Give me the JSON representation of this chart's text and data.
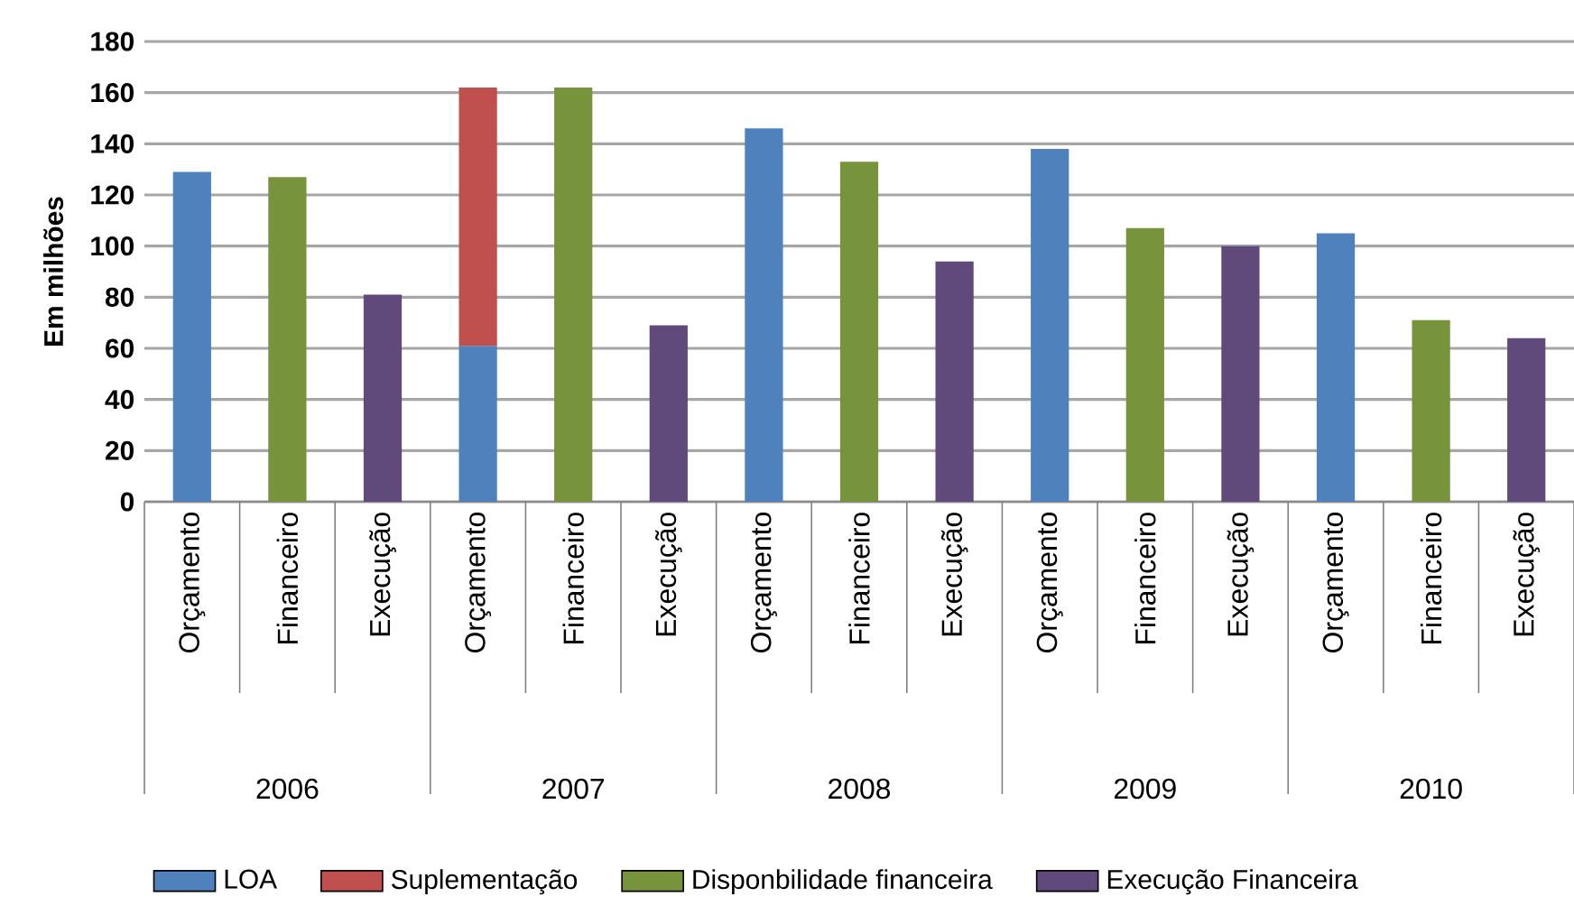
{
  "chart_data": {
    "type": "bar",
    "stacked": true,
    "ylabel": "Em milhões",
    "categories": [
      "Orçamento",
      "Financeiro",
      "Execução",
      "Orçamento",
      "Financeiro",
      "Execução",
      "Orçamento",
      "Financeiro",
      "Execução",
      "Orçamento",
      "Financeiro",
      "Execução",
      "Orçamento",
      "Financeiro",
      "Execução"
    ],
    "series": [
      {
        "name": "LOA",
        "color": "#4f81bd",
        "values": [
          129,
          null,
          null,
          61,
          null,
          null,
          146,
          null,
          null,
          138,
          null,
          null,
          105,
          null,
          null
        ]
      },
      {
        "name": "Suplementação",
        "color": "#c0504d",
        "values": [
          null,
          null,
          null,
          101,
          null,
          null,
          null,
          null,
          null,
          null,
          null,
          null,
          null,
          null,
          null
        ]
      },
      {
        "name": "Disponbilidade financeira",
        "color": "#77933c",
        "values": [
          null,
          127,
          null,
          null,
          162,
          null,
          null,
          133,
          null,
          null,
          107,
          null,
          null,
          71,
          null
        ]
      },
      {
        "name": "Execução Financeira",
        "color": "#604a7b",
        "values": [
          null,
          null,
          81,
          null,
          null,
          69,
          null,
          null,
          94,
          null,
          null,
          100,
          null,
          null,
          64
        ]
      }
    ],
    "ylim": [
      0,
      180
    ],
    "yticks": [
      0,
      20,
      40,
      60,
      80,
      100,
      120,
      140,
      160,
      180
    ],
    "grid": "y",
    "legend": "bottom",
    "annotations": [
      "2006",
      "2007",
      "2008",
      "2009",
      "2010"
    ]
  }
}
